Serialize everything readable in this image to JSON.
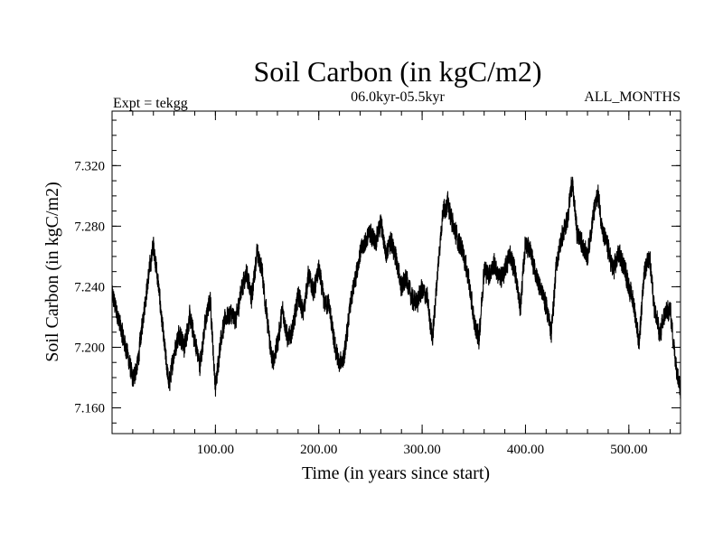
{
  "chart_data": {
    "type": "line",
    "title": "Soil Carbon (in kgC/m2)",
    "subtitle_left": "Expt = tekgg",
    "subtitle_center": "06.0kyr-05.5kyr",
    "subtitle_right": "ALL_MONTHS",
    "xlabel": "Time (in years since start)",
    "ylabel": "Soil Carbon (in kgC/m2)",
    "xlim": [
      0,
      550
    ],
    "ylim": [
      7.143,
      7.356
    ],
    "x_ticks": [
      100,
      200,
      300,
      400,
      500
    ],
    "x_tick_labels": [
      "100.00",
      "200.00",
      "300.00",
      "400.00",
      "500.00"
    ],
    "y_ticks": [
      7.16,
      7.2,
      7.24,
      7.28,
      7.32
    ],
    "y_tick_labels": [
      "7.160",
      "7.200",
      "7.240",
      "7.280",
      "7.320"
    ],
    "grid": false,
    "series": [
      {
        "name": "Soil Carbon",
        "noise_amplitude": 0.006,
        "x": [
          0,
          5,
          10,
          15,
          20,
          25,
          30,
          35,
          40,
          45,
          50,
          55,
          60,
          65,
          70,
          75,
          80,
          85,
          90,
          95,
          100,
          105,
          110,
          115,
          120,
          125,
          130,
          135,
          140,
          145,
          150,
          155,
          160,
          165,
          170,
          175,
          180,
          185,
          190,
          195,
          200,
          205,
          210,
          215,
          220,
          225,
          230,
          235,
          240,
          245,
          250,
          255,
          260,
          265,
          270,
          275,
          280,
          285,
          290,
          295,
          300,
          305,
          310,
          315,
          320,
          325,
          330,
          335,
          340,
          345,
          350,
          355,
          360,
          365,
          370,
          375,
          380,
          385,
          390,
          395,
          400,
          405,
          410,
          415,
          420,
          425,
          430,
          435,
          440,
          445,
          450,
          455,
          460,
          465,
          470,
          475,
          480,
          485,
          490,
          495,
          500,
          505,
          510,
          515,
          520,
          525,
          530,
          535,
          540,
          545,
          550
        ],
        "values": [
          7.235,
          7.222,
          7.208,
          7.196,
          7.178,
          7.19,
          7.22,
          7.245,
          7.268,
          7.24,
          7.205,
          7.175,
          7.196,
          7.21,
          7.2,
          7.22,
          7.205,
          7.188,
          7.215,
          7.232,
          7.172,
          7.205,
          7.22,
          7.222,
          7.218,
          7.238,
          7.25,
          7.232,
          7.262,
          7.252,
          7.218,
          7.19,
          7.202,
          7.225,
          7.205,
          7.212,
          7.235,
          7.222,
          7.248,
          7.236,
          7.252,
          7.23,
          7.228,
          7.202,
          7.188,
          7.195,
          7.225,
          7.245,
          7.262,
          7.27,
          7.275,
          7.27,
          7.282,
          7.262,
          7.27,
          7.258,
          7.24,
          7.245,
          7.232,
          7.23,
          7.238,
          7.232,
          7.205,
          7.25,
          7.29,
          7.295,
          7.28,
          7.27,
          7.262,
          7.245,
          7.218,
          7.205,
          7.252,
          7.248,
          7.255,
          7.245,
          7.25,
          7.262,
          7.25,
          7.225,
          7.27,
          7.262,
          7.248,
          7.238,
          7.228,
          7.21,
          7.255,
          7.272,
          7.282,
          7.31,
          7.275,
          7.268,
          7.26,
          7.285,
          7.302,
          7.275,
          7.265,
          7.25,
          7.262,
          7.255,
          7.24,
          7.228,
          7.202,
          7.25,
          7.26,
          7.225,
          7.208,
          7.222,
          7.225,
          7.192,
          7.172
        ]
      }
    ]
  }
}
